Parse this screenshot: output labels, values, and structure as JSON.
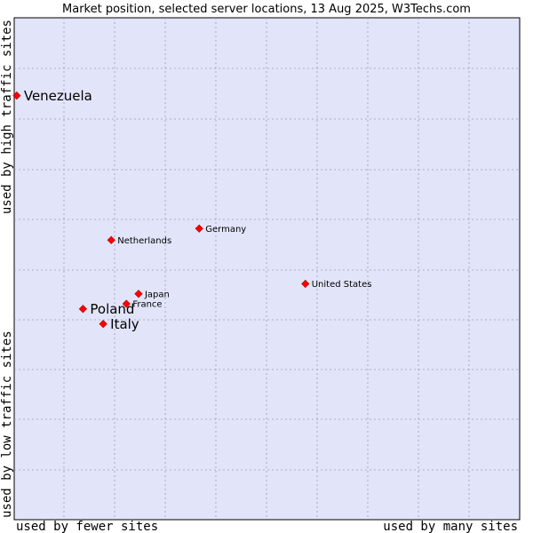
{
  "chart_data": {
    "type": "scatter",
    "title": "Market position, selected server locations, 13 Aug 2025, W3Techs.com",
    "xlabel_left": "used by fewer sites",
    "xlabel_right": "used by many sites",
    "ylabel_bottom": "used by low traffic sites",
    "ylabel_top": "used by high traffic sites",
    "xlim": [
      0,
      100
    ],
    "ylim": [
      0,
      100
    ],
    "grid": true,
    "marker_color": "#ff0000",
    "background_color": "#e2e5f9",
    "points": [
      {
        "name": "Venezuela",
        "x": 0.5,
        "y": 84.5,
        "emphasis": true
      },
      {
        "name": "Germany",
        "x": 36.6,
        "y": 58.0,
        "emphasis": false
      },
      {
        "name": "Netherlands",
        "x": 19.2,
        "y": 55.7,
        "emphasis": false
      },
      {
        "name": "United States",
        "x": 57.6,
        "y": 47.0,
        "emphasis": false
      },
      {
        "name": "Japan",
        "x": 24.6,
        "y": 45.0,
        "emphasis": false
      },
      {
        "name": "France",
        "x": 22.2,
        "y": 43.0,
        "emphasis": false
      },
      {
        "name": "Poland",
        "x": 13.6,
        "y": 42.0,
        "emphasis": true
      },
      {
        "name": "Italy",
        "x": 17.6,
        "y": 39.0,
        "emphasis": true
      }
    ]
  }
}
